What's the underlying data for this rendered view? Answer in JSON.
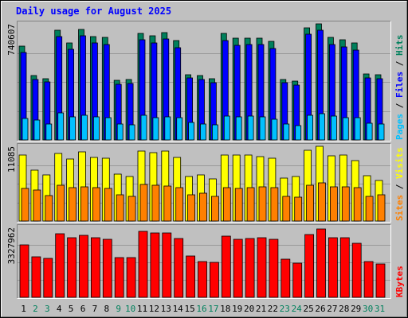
{
  "chart_data": {
    "type": "bar",
    "title": "Daily usage for August 2025",
    "colors": {
      "background": "#c0c0c0",
      "frame_light": "#ffffff",
      "frame_dark": "#808080",
      "hits": "#00805c",
      "files": "#0000ff",
      "pages": "#00c0ff",
      "visits": "#ffff00",
      "sites": "#ff8000",
      "kbytes": "#ff0000",
      "weekday_label": "#000000",
      "weekend_label": "#00805c",
      "title": "#0000ff"
    },
    "days": [
      "1",
      "2",
      "3",
      "4",
      "5",
      "6",
      "7",
      "8",
      "9",
      "10",
      "11",
      "12",
      "13",
      "14",
      "15",
      "16",
      "17",
      "18",
      "19",
      "20",
      "21",
      "22",
      "23",
      "24",
      "25",
      "26",
      "27",
      "28",
      "29",
      "30",
      "31"
    ],
    "weekend_days": [
      "2",
      "3",
      "9",
      "10",
      "16",
      "17",
      "23",
      "24",
      "30",
      "31"
    ],
    "panels": [
      {
        "id": "hits-files-pages",
        "ymax_label": "740607",
        "ymax": 740607,
        "legend": [
          "Pages",
          "Files",
          "Hits"
        ],
        "legend_colors": [
          "#00c0ff",
          "#0000ff",
          "#00805c"
        ],
        "series": [
          {
            "name": "Hits",
            "color": "#00805c",
            "values": [
              597000,
              410000,
              391000,
              699000,
              621000,
              706000,
              661000,
              654000,
              381000,
              387000,
              680000,
              662000,
              687000,
              633000,
              418000,
              411000,
              392000,
              678000,
              649000,
              649000,
              649000,
              627000,
              384000,
              373000,
              714000,
              742000,
              653000,
              637000,
              617000,
              420000,
              417000
            ]
          },
          {
            "name": "Files",
            "color": "#0000ff",
            "values": [
              560000,
              387000,
              369000,
              661000,
              580000,
              665000,
              618000,
              610000,
              357000,
              362000,
              638000,
              617000,
              646000,
              590000,
              394000,
              385000,
              366000,
              634000,
              604000,
              608000,
              609000,
              585000,
              363000,
              350000,
              674000,
              701000,
              611000,
              591000,
              575000,
              396000,
              393000
            ]
          },
          {
            "name": "Pages",
            "color": "#00c0ff",
            "values": [
              137000,
              126000,
              102000,
              170000,
              145000,
              155000,
              146000,
              143000,
              101000,
              98000,
              158000,
              144000,
              148000,
              143000,
              110000,
              102000,
              97000,
              152000,
              148000,
              151000,
              146000,
              133000,
              100000,
              89000,
              159000,
              165000,
              151000,
              142000,
              140000,
              108000,
              100000
            ]
          }
        ]
      },
      {
        "id": "visits-sites",
        "ymax_label": "11085",
        "ymax": 11085,
        "legend": [
          "Sites",
          "Visits"
        ],
        "legend_colors": [
          "#ff8000",
          "#ffff00"
        ],
        "series": [
          {
            "name": "Visits",
            "color": "#ffff00",
            "values": [
              9780,
              7510,
              6860,
              10000,
              9200,
              10230,
              9480,
              9360,
              6920,
              6570,
              10320,
              10120,
              10340,
              9440,
              6570,
              6860,
              6210,
              9780,
              9780,
              9740,
              9520,
              9280,
              6390,
              6620,
              10520,
              11100,
              9720,
              9740,
              9000,
              6680,
              6000
            ]
          },
          {
            "name": "Sites",
            "color": "#ff8000",
            "values": [
              4880,
              4630,
              3760,
              5310,
              4950,
              5040,
              5000,
              4880,
              3950,
              3600,
              5390,
              5270,
              5220,
              4950,
              3950,
              4080,
              3650,
              4950,
              4880,
              5000,
              5100,
              4910,
              3660,
              3480,
              5320,
              5620,
              5040,
              5040,
              4910,
              3620,
              3880
            ]
          }
        ]
      },
      {
        "id": "kbytes",
        "ymax_label": "3327962",
        "ymax": 3327962,
        "legend": [
          "KBytes"
        ],
        "legend_colors": [
          "#ff0000"
        ],
        "series": [
          {
            "name": "KBytes",
            "color": "#ff0000",
            "values": [
              2490000,
              1930000,
              1850000,
              3040000,
              2840000,
              2960000,
              2840000,
              2750000,
              1890000,
              1900000,
              3130000,
              3070000,
              3070000,
              2780000,
              1980000,
              1720000,
              1670000,
              2920000,
              2760000,
              2790000,
              2840000,
              2770000,
              1830000,
              1620000,
              3000000,
              3270000,
              2830000,
              2850000,
              2560000,
              1700000,
              1580000
            ]
          }
        ]
      }
    ]
  }
}
